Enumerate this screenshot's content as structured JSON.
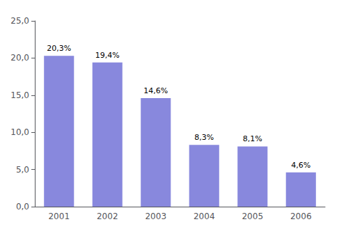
{
  "chart_data": {
    "type": "bar",
    "categories": [
      "2001",
      "2002",
      "2003",
      "2004",
      "2005",
      "2006"
    ],
    "values": [
      20.3,
      19.4,
      14.6,
      8.3,
      8.1,
      4.6
    ],
    "value_labels": [
      "20,3%",
      "19,4%",
      "14,6%",
      "8,3%",
      "8,1%",
      "4,6%"
    ],
    "data_labels": true,
    "color": "#8888dd",
    "ylim": [
      0,
      25
    ],
    "yticks": [
      {
        "value": 0.0,
        "label": "0,0"
      },
      {
        "value": 5.0,
        "label": "5,0"
      },
      {
        "value": 10.0,
        "label": "10,0"
      },
      {
        "value": 15.0,
        "label": "15,0"
      },
      {
        "value": 20.0,
        "label": "20,0"
      },
      {
        "value": 25.0,
        "label": "25,0"
      }
    ],
    "grid": false
  }
}
